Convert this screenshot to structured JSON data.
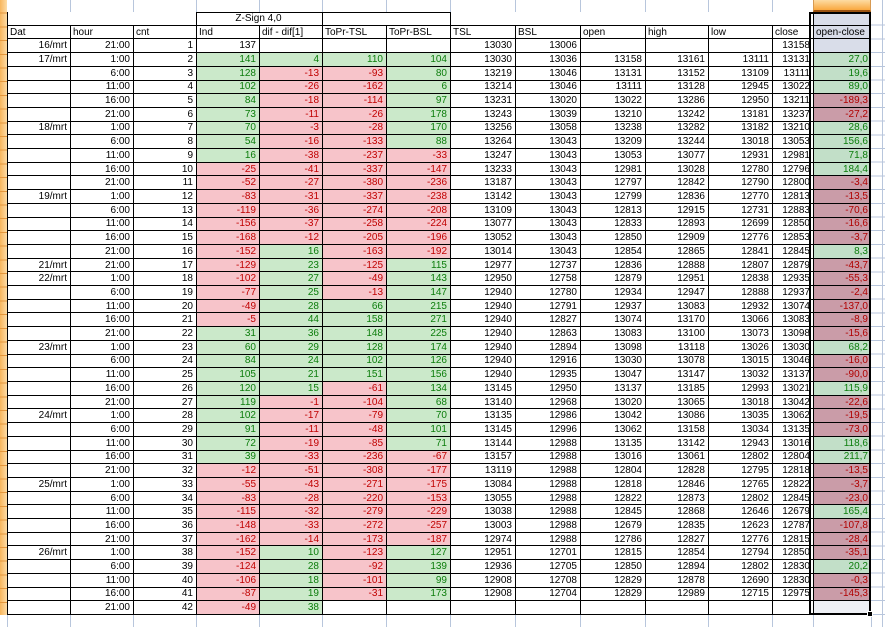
{
  "sheet_title": "Z-Sign 4,0",
  "columns": [
    "Dat",
    "hour",
    "cnt",
    "Ind",
    "dif - dif[1]",
    "ToPr-TSL",
    "ToPr-BSL",
    "TSL",
    "BSL",
    "open",
    "high",
    "low",
    "close",
    "open-close"
  ],
  "selected_column": "open-close",
  "colors": {
    "green_bg": "#CBE9CA",
    "green_text": "#0B7D0B",
    "red_bg": "#F7C4CA",
    "red_text": "#C00000",
    "selected_green_bg": "#C2DFC8",
    "selected_red_bg": "#CA9CA8",
    "selected_empty_bg": "#D9DDE9",
    "selection_border": "#000000",
    "header_amber": "#F9A83F",
    "gridline_blue": "#B8C6DC"
  },
  "rows": [
    {
      "v": [
        "16/mrt",
        "21:00",
        "1",
        "137",
        "",
        "",
        "",
        "13030",
        "13006",
        "",
        "",
        "",
        "13158",
        ""
      ],
      "s": "wwwwwwwwwwwwwl"
    },
    {
      "v": [
        "17/mrt",
        "1:00",
        "2",
        "141",
        "4",
        "110",
        "104",
        "13030",
        "13036",
        "13158",
        "13161",
        "13111",
        "13131",
        "27,0"
      ],
      "s": "wwwggggwwwwwwG"
    },
    {
      "v": [
        "",
        "6:00",
        "3",
        "128",
        "-13",
        "-93",
        "80",
        "13219",
        "13046",
        "13131",
        "13152",
        "13109",
        "13111",
        "19,6"
      ],
      "s": "wwwgrrgwwwwwwG"
    },
    {
      "v": [
        "",
        "11:00",
        "4",
        "102",
        "-26",
        "-162",
        "6",
        "13214",
        "13046",
        "13111",
        "13128",
        "12945",
        "13022",
        "89,0"
      ],
      "s": "wwwgrrgwwwwwwG"
    },
    {
      "v": [
        "",
        "16:00",
        "5",
        "84",
        "-18",
        "-114",
        "97",
        "13231",
        "13020",
        "13022",
        "13286",
        "12950",
        "13211",
        "-189,3"
      ],
      "s": "wwwgrrgwwwwwwR"
    },
    {
      "v": [
        "",
        "21:00",
        "6",
        "73",
        "-11",
        "-26",
        "178",
        "13243",
        "13039",
        "13210",
        "13242",
        "13181",
        "13237",
        "-27,2"
      ],
      "s": "wwwgrrgwwwwwwR"
    },
    {
      "v": [
        "18/mrt",
        "1:00",
        "7",
        "70",
        "-3",
        "-28",
        "170",
        "13256",
        "13058",
        "13238",
        "13282",
        "13182",
        "13210",
        "28,6"
      ],
      "s": "wwwgrrgwwwwwwG"
    },
    {
      "v": [
        "",
        "6:00",
        "8",
        "54",
        "-16",
        "-133",
        "88",
        "13264",
        "13043",
        "13209",
        "13244",
        "13018",
        "13053",
        "156,6"
      ],
      "s": "wwwgrrgwwwwwwG"
    },
    {
      "v": [
        "",
        "11:00",
        "9",
        "16",
        "-38",
        "-237",
        "-33",
        "13247",
        "13043",
        "13053",
        "13077",
        "12931",
        "12981",
        "71,8"
      ],
      "s": "wwwgrrrwwwwwwG"
    },
    {
      "v": [
        "",
        "16:00",
        "10",
        "-25",
        "-41",
        "-337",
        "-147",
        "13233",
        "13043",
        "12981",
        "13028",
        "12780",
        "12796",
        "184,4"
      ],
      "s": "wwwrrrrwwwwwwG"
    },
    {
      "v": [
        "",
        "21:00",
        "11",
        "-52",
        "-27",
        "-380",
        "-236",
        "13187",
        "13043",
        "12797",
        "12842",
        "12790",
        "12800",
        "-3,4"
      ],
      "s": "wwwrrrrwwwwwwR"
    },
    {
      "v": [
        "19/mrt",
        "1:00",
        "12",
        "-83",
        "-31",
        "-337",
        "-238",
        "13142",
        "13043",
        "12799",
        "12836",
        "12770",
        "12813",
        "-13,5"
      ],
      "s": "wwwrrrrwwwwwwR"
    },
    {
      "v": [
        "",
        "6:00",
        "13",
        "-119",
        "-36",
        "-274",
        "-208",
        "13109",
        "13043",
        "12813",
        "12915",
        "12731",
        "12883",
        "-70,6"
      ],
      "s": "wwwrrrrwwwwwwR"
    },
    {
      "v": [
        "",
        "11:00",
        "14",
        "-156",
        "-37",
        "-258",
        "-224",
        "13077",
        "13043",
        "12833",
        "12893",
        "12699",
        "12850",
        "-16,6"
      ],
      "s": "wwwrrrrwwwwwwR"
    },
    {
      "v": [
        "",
        "16:00",
        "15",
        "-168",
        "-12",
        "-205",
        "-196",
        "13052",
        "13043",
        "12850",
        "12909",
        "12776",
        "12853",
        "-3,7"
      ],
      "s": "wwwrrrrwwwwwwR"
    },
    {
      "v": [
        "",
        "21:00",
        "16",
        "-152",
        "16",
        "-163",
        "-192",
        "13014",
        "13043",
        "12854",
        "12865",
        "12841",
        "12845",
        "8,3"
      ],
      "s": "wwwrgrrwwwwwwG"
    },
    {
      "v": [
        "21/mrt",
        "21:00",
        "17",
        "-129",
        "23",
        "-125",
        "115",
        "12977",
        "12737",
        "12836",
        "12888",
        "12807",
        "12879",
        "-43,7"
      ],
      "s": "wwwrgrgwwwwwwR"
    },
    {
      "v": [
        "22/mrt",
        "1:00",
        "18",
        "-102",
        "27",
        "-49",
        "143",
        "12950",
        "12758",
        "12879",
        "12951",
        "12838",
        "12935",
        "-55,3"
      ],
      "s": "wwwrgrgwwwwwwR"
    },
    {
      "v": [
        "",
        "6:00",
        "19",
        "-77",
        "25",
        "-13",
        "147",
        "12940",
        "12780",
        "12934",
        "12947",
        "12888",
        "12937",
        "-2,4"
      ],
      "s": "wwwrgrgwwwwwwR"
    },
    {
      "v": [
        "",
        "11:00",
        "20",
        "-49",
        "28",
        "66",
        "215",
        "12940",
        "12791",
        "12937",
        "13083",
        "12932",
        "13074",
        "-137,0"
      ],
      "s": "wwwrgggwwwwwwR"
    },
    {
      "v": [
        "",
        "16:00",
        "21",
        "-5",
        "44",
        "158",
        "271",
        "12940",
        "12827",
        "13074",
        "13170",
        "13066",
        "13083",
        "-8,9"
      ],
      "s": "wwwrgggwwwwwwR"
    },
    {
      "v": [
        "",
        "21:00",
        "22",
        "31",
        "36",
        "148",
        "225",
        "12940",
        "12863",
        "13083",
        "13100",
        "13073",
        "13098",
        "-15,6"
      ],
      "s": "wwwggggwwwwwwR"
    },
    {
      "v": [
        "23/mrt",
        "1:00",
        "23",
        "60",
        "29",
        "128",
        "174",
        "12940",
        "12894",
        "13098",
        "13118",
        "13026",
        "13030",
        "68,2"
      ],
      "s": "wwwggggwwwwwwG"
    },
    {
      "v": [
        "",
        "6:00",
        "24",
        "84",
        "24",
        "102",
        "126",
        "12940",
        "12916",
        "13030",
        "13078",
        "13015",
        "13046",
        "-16,0"
      ],
      "s": "wwwggggwwwwwwR"
    },
    {
      "v": [
        "",
        "11:00",
        "25",
        "105",
        "21",
        "151",
        "156",
        "12940",
        "12935",
        "13047",
        "13147",
        "13032",
        "13137",
        "-90,0"
      ],
      "s": "wwwggggwwwwwwR"
    },
    {
      "v": [
        "",
        "16:00",
        "26",
        "120",
        "15",
        "-61",
        "134",
        "13145",
        "12950",
        "13137",
        "13185",
        "12993",
        "13021",
        "115,9"
      ],
      "s": "wwwggrgwwwwwwG"
    },
    {
      "v": [
        "",
        "21:00",
        "27",
        "119",
        "-1",
        "-104",
        "68",
        "13140",
        "12968",
        "13020",
        "13065",
        "13018",
        "13042",
        "-22,6"
      ],
      "s": "wwwgrrgwwwwwwR"
    },
    {
      "v": [
        "24/mrt",
        "1:00",
        "28",
        "102",
        "-17",
        "-79",
        "70",
        "13135",
        "12986",
        "13042",
        "13086",
        "13035",
        "13062",
        "-19,5"
      ],
      "s": "wwwgrrgwwwwwwR"
    },
    {
      "v": [
        "",
        "6:00",
        "29",
        "91",
        "-11",
        "-48",
        "101",
        "13145",
        "12996",
        "13062",
        "13158",
        "13034",
        "13135",
        "-73,0"
      ],
      "s": "wwwgrrgwwwwwwR"
    },
    {
      "v": [
        "",
        "11:00",
        "30",
        "72",
        "-19",
        "-85",
        "71",
        "13144",
        "12988",
        "13135",
        "13142",
        "12943",
        "13016",
        "118,6"
      ],
      "s": "wwwgrrgwwwwwwG"
    },
    {
      "v": [
        "",
        "16:00",
        "31",
        "39",
        "-33",
        "-236",
        "-67",
        "13157",
        "12988",
        "13016",
        "13061",
        "12802",
        "12804",
        "211,7"
      ],
      "s": "wwwgrrrwwwwwwG"
    },
    {
      "v": [
        "",
        "21:00",
        "32",
        "-12",
        "-51",
        "-308",
        "-177",
        "13119",
        "12988",
        "12804",
        "12828",
        "12795",
        "12818",
        "-13,5"
      ],
      "s": "wwwrrrrwwwwwwR"
    },
    {
      "v": [
        "25/mrt",
        "1:00",
        "33",
        "-55",
        "-43",
        "-271",
        "-175",
        "13084",
        "12988",
        "12818",
        "12846",
        "12765",
        "12822",
        "-3,7"
      ],
      "s": "wwwrrrrwwwwwwR"
    },
    {
      "v": [
        "",
        "6:00",
        "34",
        "-83",
        "-28",
        "-220",
        "-153",
        "13055",
        "12988",
        "12822",
        "12873",
        "12802",
        "12845",
        "-23,0"
      ],
      "s": "wwwrrrrwwwwwwR"
    },
    {
      "v": [
        "",
        "11:00",
        "35",
        "-115",
        "-32",
        "-279",
        "-229",
        "13038",
        "12988",
        "12845",
        "12868",
        "12646",
        "12679",
        "165,4"
      ],
      "s": "wwwrrrrwwwwwwG"
    },
    {
      "v": [
        "",
        "16:00",
        "36",
        "-148",
        "-33",
        "-272",
        "-257",
        "13003",
        "12988",
        "12679",
        "12835",
        "12623",
        "12787",
        "-107,8"
      ],
      "s": "wwwrrrrwwwwwwR"
    },
    {
      "v": [
        "",
        "21:00",
        "37",
        "-162",
        "-14",
        "-173",
        "-187",
        "12974",
        "12988",
        "12786",
        "12827",
        "12776",
        "12815",
        "-28,4"
      ],
      "s": "wwwrrrrwwwwwwR"
    },
    {
      "v": [
        "26/mrt",
        "1:00",
        "38",
        "-152",
        "10",
        "-123",
        "127",
        "12951",
        "12701",
        "12815",
        "12854",
        "12794",
        "12850",
        "-35,1"
      ],
      "s": "wwwrgrgwwwwwwR"
    },
    {
      "v": [
        "",
        "6:00",
        "39",
        "-124",
        "28",
        "-92",
        "139",
        "12936",
        "12705",
        "12850",
        "12894",
        "12802",
        "12830",
        "20,2"
      ],
      "s": "wwwrgrgwwwwwwG"
    },
    {
      "v": [
        "",
        "11:00",
        "40",
        "-106",
        "18",
        "-101",
        "99",
        "12908",
        "12708",
        "12829",
        "12878",
        "12690",
        "12830",
        "-0,3"
      ],
      "s": "wwwrgrgwwwwwwR"
    },
    {
      "v": [
        "",
        "16:00",
        "41",
        "-87",
        "19",
        "-31",
        "173",
        "12908",
        "12704",
        "12829",
        "12989",
        "12715",
        "12975",
        "-145,3"
      ],
      "s": "wwwrgrgwwwwwwR"
    },
    {
      "v": [
        "",
        "21:00",
        "42",
        "-49",
        "38",
        "",
        "",
        "",
        "",
        "",
        "",
        "",
        "",
        ""
      ],
      "s": "wwwrgwwwwwwwwW"
    }
  ]
}
